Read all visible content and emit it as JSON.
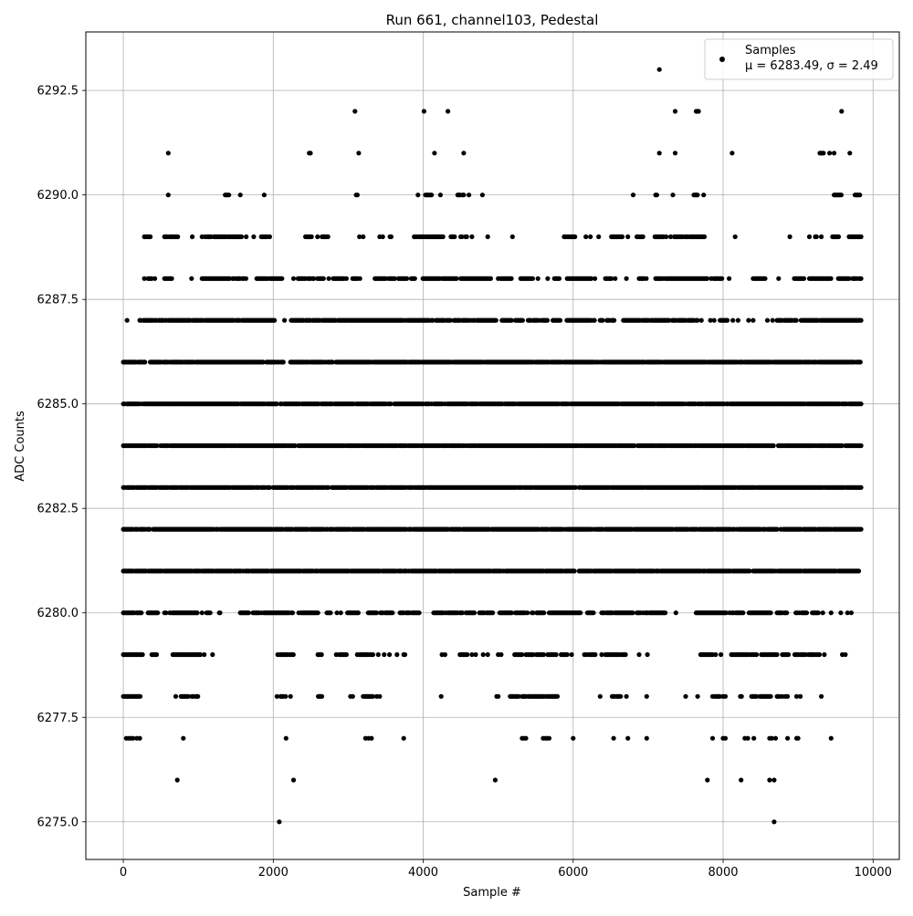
{
  "chart_data": {
    "type": "scatter",
    "title": "Run 661, channel103, Pedestal",
    "xlabel": "Sample #",
    "ylabel": "ADC Counts",
    "xlim": [
      -500,
      10350
    ],
    "ylim": [
      6274.1,
      6293.9
    ],
    "xticks": [
      0,
      2000,
      4000,
      6000,
      8000,
      10000
    ],
    "xtick_labels": [
      "0",
      "2000",
      "4000",
      "6000",
      "8000",
      "10000"
    ],
    "yticks": [
      6275.0,
      6277.5,
      6280.0,
      6282.5,
      6285.0,
      6287.5,
      6290.0,
      6292.5
    ],
    "ytick_labels": [
      "6275.0",
      "6277.5",
      "6280.0",
      "6282.5",
      "6285.0",
      "6287.5",
      "6290.0",
      "6292.5"
    ],
    "grid": true,
    "legend": {
      "placement": "top-right",
      "entry": "Samples",
      "stats_line": "μ = 6283.49, σ = 2.49"
    },
    "color": "#000000",
    "series": [
      {
        "name": "Samples",
        "x_range": [
          0,
          9840
        ],
        "mean": 6283.49,
        "sigma": 2.49,
        "levels": [
          {
            "y": 6275,
            "x": [
              2080,
              8680
            ]
          },
          {
            "y": 6276,
            "x": [
              720,
              2270,
              4960,
              7790,
              8240,
              8620,
              8680
            ]
          },
          {
            "y": 6277,
            "x": [
              40,
              70,
              100,
              130,
              180,
              220,
              800,
              2170,
              3230,
              3270,
              3310,
              3740,
              5320,
              5340,
              5370,
              5600,
              5630,
              5650,
              5680,
              6000,
              6540,
              6730,
              6980,
              7860,
              8000,
              8030,
              8290,
              8330,
              8410,
              8620,
              8650,
              8700,
              8860,
              8980,
              9000,
              9440
            ]
          },
          {
            "y": 6278,
            "x": [
              [
                0,
                230
              ],
              700,
              [
                770,
                1000
              ],
              2050,
              [
                2100,
                2170
              ],
              2230,
              [
                2600,
                2650
              ],
              3030,
              3060,
              [
                3200,
                3330
              ],
              3380,
              3420,
              4240,
              4980,
              5000,
              [
                5160,
                5280
              ],
              [
                5320,
                5460
              ],
              [
                5470,
                5800
              ],
              6360,
              [
                6520,
                6640
              ],
              6710,
              6980,
              7500,
              7660,
              [
                7860,
                7970
              ],
              8000,
              8030,
              [
                8230,
                8260
              ],
              [
                8380,
                8450
              ],
              [
                8490,
                8640
              ],
              [
                8720,
                8760
              ],
              8790,
              8830,
              8860,
              8980,
              9030,
              9310
            ]
          },
          {
            "y": 6279,
            "x": [
              [
                0,
                260
              ],
              [
                380,
                460
              ],
              [
                660,
                1030
              ],
              1080,
              1190,
              [
                2060,
                2280
              ],
              [
                2580,
                2650
              ],
              2840,
              [
                2880,
                2990
              ],
              [
                3120,
                3340
              ],
              3400,
              3480,
              3550,
              3650,
              [
                3740,
                3770
              ],
              4250,
              4290,
              [
                4490,
                4590
              ],
              4650,
              4700,
              4800,
              4860,
              5000,
              5040,
              [
                5220,
                5330
              ],
              [
                5370,
                5480
              ],
              [
                5510,
                5610
              ],
              [
                5660,
                5780
              ],
              [
                5840,
                5920
              ],
              5980,
              [
                6150,
                6300
              ],
              [
                6380,
                6400
              ],
              [
                6430,
                6550
              ],
              [
                6570,
                6710
              ],
              6880,
              6990,
              [
                7700,
                7860
              ],
              7900,
              7970,
              [
                8110,
                8450
              ],
              [
                8510,
                8730
              ],
              [
                8790,
                8880
              ],
              [
                8940,
                9110
              ],
              [
                9140,
                9290
              ],
              9350,
              9590,
              9630
            ]
          },
          {
            "y": 6280,
            "x": [
              [
                0,
                250
              ],
              [
                330,
                460
              ],
              550,
              570,
              620,
              [
                650,
                1000
              ],
              1050,
              [
                1110,
                1170
              ],
              1280,
              1290,
              [
                1560,
                1680
              ],
              [
                1730,
                2260
              ],
              [
                2340,
                2600
              ],
              [
                2700,
                2770
              ],
              2850,
              2900,
              [
                2990,
                3140
              ],
              [
                3250,
                3390
              ],
              [
                3430,
                3590
              ],
              [
                3690,
                3950
              ],
              [
                4140,
                4300
              ],
              [
                4330,
                4460
              ],
              [
                4490,
                4530
              ],
              [
                4570,
                4690
              ],
              [
                4750,
                4930
              ],
              [
                5020,
                5180
              ],
              [
                5230,
                5390
              ],
              [
                5450,
                5620
              ],
              [
                5680,
                6100
              ],
              [
                6190,
                6270
              ],
              [
                6380,
                6800
              ],
              [
                6850,
                7000
              ],
              [
                7020,
                7240
              ],
              7370,
              [
                7640,
                8050
              ],
              [
                8070,
                8230
              ],
              [
                8250,
                8280
              ],
              [
                8330,
                8640
              ],
              [
                8720,
                8860
              ],
              [
                8970,
                9120
              ],
              [
                9190,
                9280
              ],
              9330,
              9440,
              9570,
              9660,
              9710
            ]
          },
          {
            "y": 6281,
            "x": [
              [
                0,
                9820
              ]
            ]
          },
          {
            "y": 6282,
            "x": [
              [
                0,
                9840
              ]
            ]
          },
          {
            "y": 6283,
            "x": [
              [
                0,
                9840
              ]
            ]
          },
          {
            "y": 6284,
            "x": [
              [
                0,
                9840
              ]
            ]
          },
          {
            "y": 6285,
            "x": [
              [
                0,
                9840
              ]
            ]
          },
          {
            "y": 6286,
            "x": [
              [
                0,
                300
              ],
              [
                360,
                1890
              ],
              [
                1910,
                2140
              ],
              [
                2230,
                9840
              ]
            ]
          },
          {
            "y": 6287,
            "x": [
              50,
              [
                220,
                240
              ],
              270,
              [
                280,
                400
              ],
              [
                420,
                540
              ],
              [
                560,
                2030
              ],
              [
                2150,
                2180
              ],
              [
                2240,
                3760
              ],
              [
                3790,
                4130
              ],
              [
                4170,
                4980
              ],
              [
                5050,
                5190
              ],
              [
                5230,
                5340
              ],
              [
                5400,
                5540
              ],
              [
                5560,
                5660
              ],
              [
                5730,
                5830
              ],
              [
                5900,
                6290
              ],
              [
                6360,
                6400
              ],
              [
                6450,
                6550
              ],
              [
                6670,
                7290
              ],
              [
                7320,
                7670
              ],
              7710,
              7830,
              7880,
              [
                7960,
                8060
              ],
              8130,
              8200,
              8340,
              8400,
              8590,
              8660,
              [
                8720,
                8990
              ],
              [
                9040,
                9840
              ]
            ]
          },
          {
            "y": 6288,
            "x": [
              280,
              [
                330,
                380
              ],
              420,
              [
                550,
                660
              ],
              910,
              [
                1050,
                1430
              ],
              [
                1460,
                1640
              ],
              [
                1780,
                2120
              ],
              2270,
              [
                2330,
                2440
              ],
              [
                2460,
                2550
              ],
              [
                2590,
                2680
              ],
              2740,
              [
                2800,
                2980
              ],
              [
                3060,
                3170
              ],
              [
                3340,
                3500
              ],
              [
                3540,
                3620
              ],
              [
                3670,
                3790
              ],
              [
                3840,
                3890
              ],
              [
                3980,
                4460
              ],
              [
                4500,
                4910
              ],
              [
                5000,
                5180
              ],
              [
                5300,
                5470
              ],
              5530,
              5660,
              [
                5750,
                5820
              ],
              [
                5920,
                6240
              ],
              6290,
              [
                6430,
                6510
              ],
              6560,
              6710,
              [
                6880,
                6990
              ],
              [
                7100,
                7790
              ],
              [
                7840,
                7990
              ],
              8080,
              [
                8400,
                8560
              ],
              8740,
              [
                8950,
                9090
              ],
              [
                9150,
                9450
              ],
              [
                9520,
                9840
              ]
            ]
          },
          {
            "y": 6289,
            "x": [
              [
                280,
                370
              ],
              [
                550,
                740
              ],
              920,
              1050,
              [
                1090,
                1170
              ],
              [
                1210,
                1370
              ],
              [
                1400,
                1580
              ],
              1640,
              1740,
              [
                1840,
                1960
              ],
              [
                2430,
                2520
              ],
              2590,
              [
                2650,
                2730
              ],
              3150,
              3200,
              3420,
              3460,
              [
                3540,
                3580
              ],
              [
                3880,
                4290
              ],
              [
                4370,
                4430
              ],
              [
                4500,
                4600
              ],
              4650,
              4860,
              5190,
              [
                5880,
                6030
              ],
              6170,
              6230,
              6340,
              [
                6510,
                6660
              ],
              6730,
              [
                6850,
                6940
              ],
              [
                7090,
                7210
              ],
              7240,
              7300,
              [
                7350,
                7760
              ],
              8160,
              8890,
              9150,
              [
                9230,
                9260
              ],
              9310,
              [
                9460,
                9550
              ],
              [
                9610,
                9620
              ],
              [
                9680,
                9840
              ]
            ]
          },
          {
            "y": 6290,
            "x": [
              600,
              [
                1360,
                1420
              ],
              [
                1560,
                1580
              ],
              1880,
              [
                3090,
                3130
              ],
              3930,
              [
                4030,
                4120
              ],
              4230,
              [
                4460,
                4540
              ],
              4610,
              4790,
              6800,
              [
                7100,
                7120
              ],
              7330,
              [
                7610,
                7660
              ],
              7740,
              [
                9480,
                9580
              ],
              [
                9760,
                9830
              ]
            ]
          },
          {
            "y": 6291,
            "x": [
              600,
              [
                2480,
                2510
              ],
              3140,
              4150,
              4540,
              7150,
              7360,
              8120,
              [
                9290,
                9350
              ],
              9420,
              9480,
              9690
            ]
          },
          {
            "y": 6292,
            "x": [
              3090,
              4010,
              4330,
              [
                7640,
                7680
              ],
              7360,
              9580
            ]
          },
          {
            "y": 6293,
            "x": [
              7150
            ]
          }
        ]
      }
    ]
  }
}
